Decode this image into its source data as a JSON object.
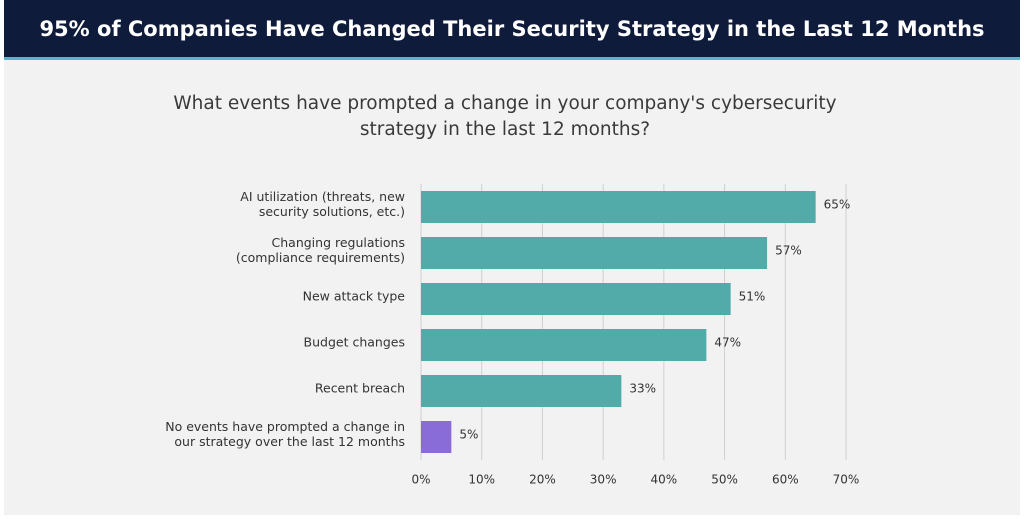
{
  "chart_data": {
    "type": "bar",
    "orientation": "horizontal",
    "title": "95% of Companies Have Changed Their Security Strategy in the Last 12 Months",
    "subtitle": [
      "What events have prompted a change in your company's cybersecurity",
      "strategy in the last 12 months?"
    ],
    "categories": [
      [
        "AI utilization (threats, new",
        "security solutions, etc.)"
      ],
      [
        "Changing regulations",
        "(compliance requirements)"
      ],
      [
        "New attack type"
      ],
      [
        "Budget changes"
      ],
      [
        "Recent breach"
      ],
      [
        "No events have prompted a change in",
        "our strategy over the last 12 months"
      ]
    ],
    "values": [
      65,
      57,
      51,
      47,
      33,
      5
    ],
    "value_labels": [
      "65%",
      "57%",
      "51%",
      "47%",
      "33%",
      "5%"
    ],
    "colors": [
      "#52aaa9",
      "#52aaa9",
      "#52aaa9",
      "#52aaa9",
      "#52aaa9",
      "#8a6cd8"
    ],
    "xlim": [
      0,
      70
    ],
    "xticks": [
      {
        "value": 0,
        "label": "0%"
      },
      {
        "value": 10,
        "label": "10%"
      },
      {
        "value": 20,
        "label": "20%"
      },
      {
        "value": 30,
        "label": "30%"
      },
      {
        "value": 40,
        "label": "40%"
      },
      {
        "value": 50,
        "label": "50%"
      },
      {
        "value": 60,
        "label": "60%"
      },
      {
        "value": 70,
        "label": "70%"
      }
    ],
    "grid": true
  }
}
